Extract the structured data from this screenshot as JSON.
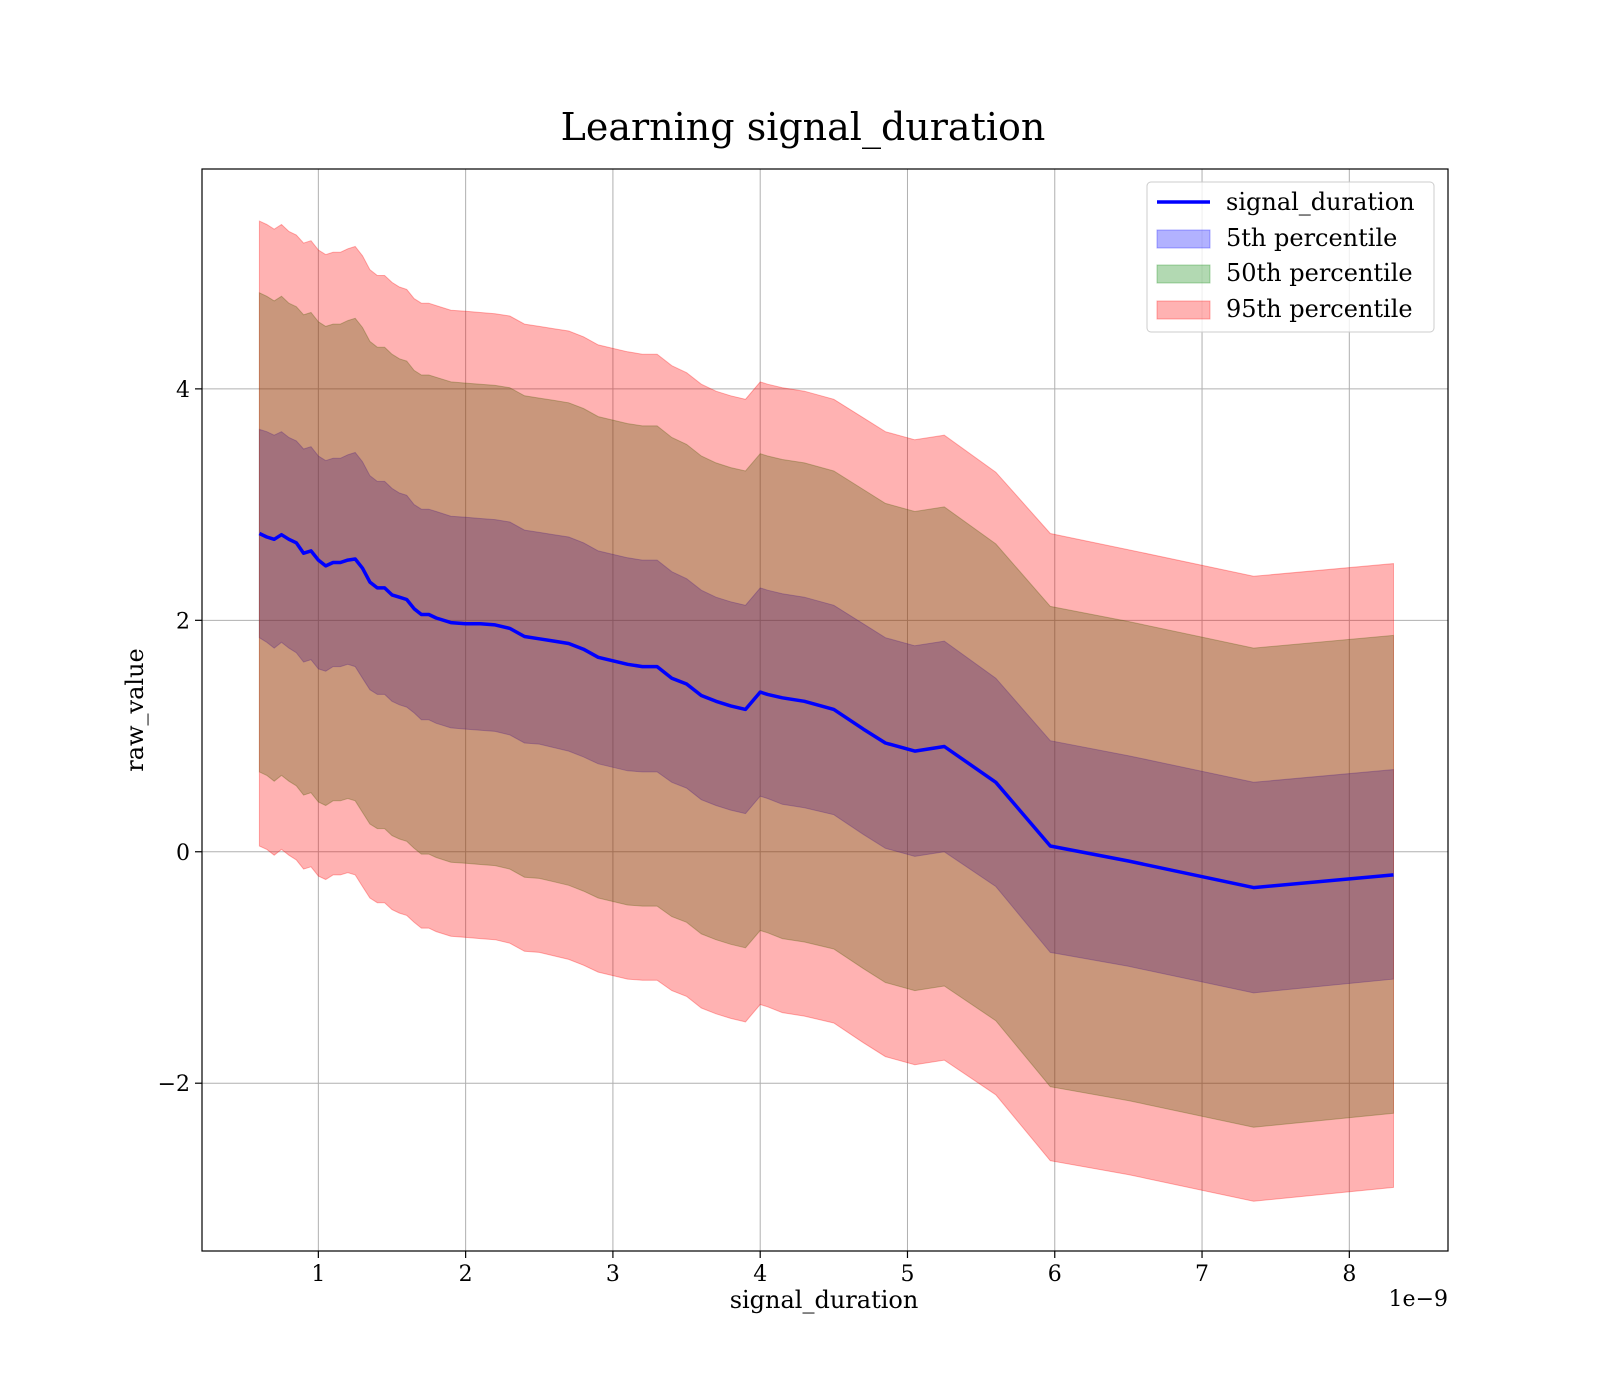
{
  "chart_data": {
    "type": "line",
    "title": "Learning signal_duration",
    "xlabel": "signal_duration",
    "ylabel": "raw_value",
    "x_offset_text": "1e−9",
    "x_tick_labels": [
      "1",
      "2",
      "3",
      "4",
      "5",
      "6",
      "7",
      "8"
    ],
    "x_ticks": [
      1,
      2,
      3,
      4,
      5,
      6,
      7,
      8
    ],
    "y_tick_labels": [
      "−2",
      "0",
      "2",
      "4"
    ],
    "y_ticks": [
      -2,
      0,
      2,
      4
    ],
    "xlim": [
      0.21,
      8.67
    ],
    "ylim": [
      -3.45,
      5.9
    ],
    "grid": true,
    "legend_position": "upper right",
    "x": [
      0.6,
      0.65,
      0.7,
      0.75,
      0.8,
      0.85,
      0.9,
      0.95,
      1.0,
      1.05,
      1.1,
      1.15,
      1.2,
      1.25,
      1.3,
      1.35,
      1.4,
      1.45,
      1.5,
      1.55,
      1.6,
      1.65,
      1.7,
      1.75,
      1.8,
      1.9,
      2.0,
      2.1,
      2.2,
      2.3,
      2.4,
      2.5,
      2.6,
      2.7,
      2.8,
      2.9,
      3.0,
      3.1,
      3.2,
      3.3,
      3.4,
      3.5,
      3.6,
      3.7,
      3.8,
      3.9,
      4.0,
      4.05,
      4.15,
      4.3,
      4.5,
      4.7,
      4.85,
      5.05,
      5.25,
      5.6,
      5.97,
      6.5,
      7.35,
      8.3
    ],
    "series": [
      {
        "name": "signal_duration",
        "type": "line",
        "color": "#0000ff",
        "values": [
          2.75,
          2.72,
          2.7,
          2.74,
          2.7,
          2.67,
          2.58,
          2.6,
          2.52,
          2.47,
          2.5,
          2.5,
          2.52,
          2.53,
          2.45,
          2.33,
          2.28,
          2.28,
          2.22,
          2.2,
          2.18,
          2.1,
          2.05,
          2.05,
          2.02,
          1.98,
          1.97,
          1.97,
          1.96,
          1.93,
          1.86,
          1.84,
          1.82,
          1.8,
          1.75,
          1.68,
          1.65,
          1.62,
          1.6,
          1.6,
          1.5,
          1.45,
          1.35,
          1.3,
          1.26,
          1.23,
          1.38,
          1.36,
          1.33,
          1.3,
          1.23,
          1.06,
          0.94,
          0.87,
          0.91,
          0.6,
          0.05,
          -0.08,
          -0.31,
          -0.2
        ]
      }
    ],
    "bands": [
      {
        "name": "5th percentile",
        "color": "#0000ff",
        "alpha": 0.3,
        "lower": [
          1.85,
          1.81,
          1.76,
          1.81,
          1.76,
          1.72,
          1.64,
          1.66,
          1.58,
          1.56,
          1.6,
          1.6,
          1.62,
          1.6,
          1.5,
          1.4,
          1.36,
          1.36,
          1.3,
          1.27,
          1.25,
          1.2,
          1.14,
          1.14,
          1.11,
          1.07,
          1.06,
          1.05,
          1.04,
          1.01,
          0.94,
          0.93,
          0.9,
          0.87,
          0.82,
          0.76,
          0.73,
          0.7,
          0.69,
          0.69,
          0.6,
          0.55,
          0.45,
          0.4,
          0.36,
          0.33,
          0.48,
          0.46,
          0.41,
          0.38,
          0.32,
          0.15,
          0.03,
          -0.04,
          0.0,
          -0.3,
          -0.87,
          -0.99,
          -1.22,
          -1.1
        ],
        "upper": [
          3.65,
          3.63,
          3.6,
          3.63,
          3.58,
          3.55,
          3.48,
          3.5,
          3.42,
          3.38,
          3.4,
          3.4,
          3.43,
          3.45,
          3.37,
          3.25,
          3.2,
          3.2,
          3.14,
          3.1,
          3.08,
          3.0,
          2.96,
          2.96,
          2.94,
          2.9,
          2.89,
          2.88,
          2.87,
          2.85,
          2.78,
          2.76,
          2.74,
          2.72,
          2.67,
          2.6,
          2.57,
          2.54,
          2.52,
          2.52,
          2.42,
          2.36,
          2.26,
          2.2,
          2.16,
          2.13,
          2.28,
          2.26,
          2.23,
          2.2,
          2.13,
          1.97,
          1.85,
          1.78,
          1.82,
          1.5,
          0.96,
          0.83,
          0.6,
          0.71
        ]
      },
      {
        "name": "50th percentile",
        "color": "#008000",
        "alpha": 0.3,
        "lower": [
          0.69,
          0.66,
          0.61,
          0.66,
          0.61,
          0.57,
          0.49,
          0.51,
          0.43,
          0.4,
          0.44,
          0.44,
          0.46,
          0.44,
          0.34,
          0.24,
          0.2,
          0.2,
          0.14,
          0.11,
          0.09,
          0.03,
          -0.02,
          -0.02,
          -0.05,
          -0.09,
          -0.1,
          -0.11,
          -0.12,
          -0.15,
          -0.22,
          -0.23,
          -0.26,
          -0.29,
          -0.34,
          -0.4,
          -0.43,
          -0.46,
          -0.47,
          -0.47,
          -0.56,
          -0.61,
          -0.71,
          -0.76,
          -0.8,
          -0.83,
          -0.68,
          -0.7,
          -0.75,
          -0.78,
          -0.84,
          -1.01,
          -1.13,
          -1.2,
          -1.16,
          -1.46,
          -2.03,
          -2.15,
          -2.38,
          -2.26
        ],
        "upper": [
          4.83,
          4.8,
          4.76,
          4.8,
          4.74,
          4.71,
          4.64,
          4.66,
          4.58,
          4.54,
          4.56,
          4.56,
          4.59,
          4.61,
          4.53,
          4.41,
          4.36,
          4.36,
          4.3,
          4.26,
          4.24,
          4.16,
          4.12,
          4.12,
          4.1,
          4.06,
          4.05,
          4.04,
          4.03,
          4.01,
          3.94,
          3.92,
          3.9,
          3.88,
          3.83,
          3.76,
          3.73,
          3.7,
          3.68,
          3.68,
          3.58,
          3.52,
          3.42,
          3.36,
          3.32,
          3.29,
          3.44,
          3.42,
          3.39,
          3.36,
          3.29,
          3.13,
          3.01,
          2.94,
          2.98,
          2.66,
          2.12,
          1.99,
          1.76,
          1.87
        ]
      },
      {
        "name": "95th percentile",
        "color": "#ff0000",
        "alpha": 0.3,
        "lower": [
          0.05,
          0.02,
          -0.03,
          0.02,
          -0.03,
          -0.07,
          -0.15,
          -0.13,
          -0.21,
          -0.24,
          -0.2,
          -0.2,
          -0.18,
          -0.2,
          -0.3,
          -0.4,
          -0.44,
          -0.44,
          -0.5,
          -0.53,
          -0.55,
          -0.61,
          -0.66,
          -0.66,
          -0.69,
          -0.73,
          -0.74,
          -0.75,
          -0.76,
          -0.79,
          -0.86,
          -0.87,
          -0.9,
          -0.93,
          -0.98,
          -1.04,
          -1.07,
          -1.1,
          -1.11,
          -1.11,
          -1.2,
          -1.25,
          -1.35,
          -1.4,
          -1.44,
          -1.47,
          -1.32,
          -1.34,
          -1.39,
          -1.42,
          -1.48,
          -1.65,
          -1.77,
          -1.84,
          -1.8,
          -2.1,
          -2.67,
          -2.79,
          -3.02,
          -2.9
        ],
        "upper": [
          5.45,
          5.42,
          5.38,
          5.42,
          5.36,
          5.33,
          5.26,
          5.28,
          5.2,
          5.16,
          5.18,
          5.18,
          5.21,
          5.23,
          5.15,
          5.03,
          4.98,
          4.98,
          4.92,
          4.88,
          4.86,
          4.78,
          4.74,
          4.74,
          4.72,
          4.68,
          4.67,
          4.66,
          4.65,
          4.63,
          4.56,
          4.54,
          4.52,
          4.5,
          4.45,
          4.38,
          4.35,
          4.32,
          4.3,
          4.3,
          4.2,
          4.14,
          4.04,
          3.98,
          3.94,
          3.91,
          4.06,
          4.04,
          4.01,
          3.98,
          3.91,
          3.75,
          3.63,
          3.56,
          3.6,
          3.28,
          2.75,
          2.61,
          2.38,
          2.49
        ]
      }
    ],
    "legend": [
      {
        "label": "signal_duration",
        "kind": "line",
        "color": "#0000ff"
      },
      {
        "label": "5th percentile",
        "kind": "patch",
        "color": "#0000ff",
        "alpha": 0.3
      },
      {
        "label": "50th percentile",
        "kind": "patch",
        "color": "#008000",
        "alpha": 0.3
      },
      {
        "label": "95th percentile",
        "kind": "patch",
        "color": "#ff0000",
        "alpha": 0.3
      }
    ]
  }
}
